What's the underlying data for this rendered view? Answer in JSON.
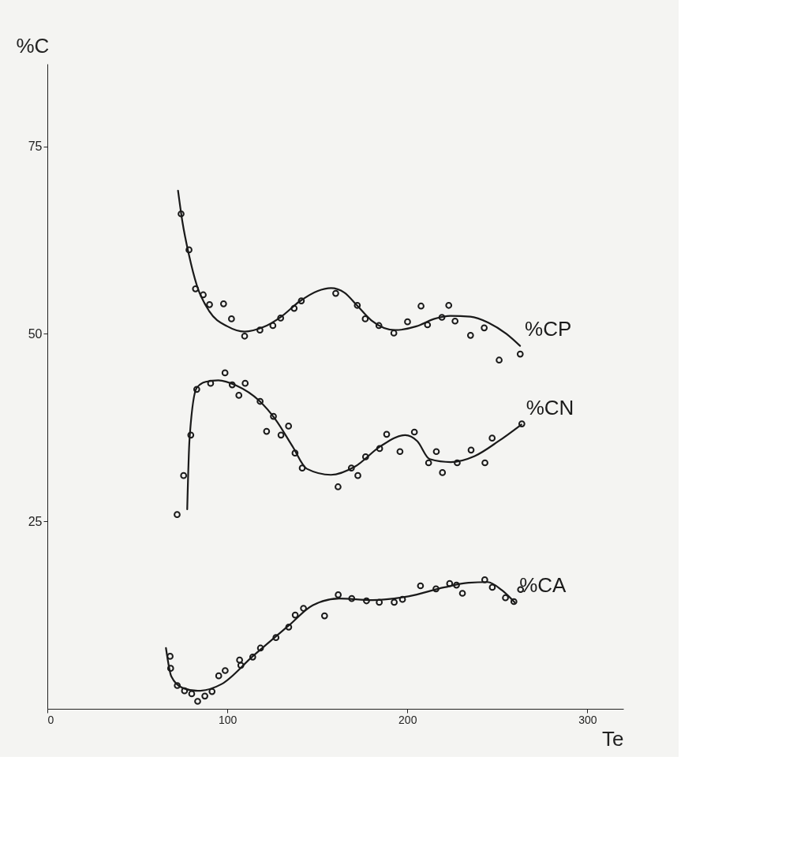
{
  "chart_data": {
    "type": "scatter",
    "xlabel": "Te",
    "ylabel": "%C",
    "xlim": [
      0,
      320
    ],
    "ylim": [
      0,
      86
    ],
    "xticks": [
      0,
      100,
      200,
      300
    ],
    "yticks": [
      25,
      50,
      75
    ],
    "grid": false,
    "series": [
      {
        "marker": "circle",
        "color": "#1a1a1a",
        "x": [
          74.3,
          78.7,
          82.3,
          86.6,
          90.1,
          97.9,
          102.3,
          109.6,
          118.1,
          125.3,
          129.6,
          137.1,
          141.1,
          160.2,
          172.2,
          176.6,
          184.2,
          192.5,
          200.1,
          207.6,
          211.2,
          219.2,
          223.0,
          226.5,
          235.1,
          242.7,
          251.0,
          262.7
        ],
        "values": [
          66.0,
          61.2,
          56.0,
          55.2,
          53.9,
          54.0,
          52.0,
          49.7,
          50.5,
          51.1,
          52.1,
          53.4,
          54.4,
          55.4,
          53.8,
          52.0,
          51.1,
          50.1,
          51.6,
          53.7,
          51.2,
          52.2,
          53.8,
          51.7,
          49.8,
          50.8,
          46.5,
          47.3
        ]
      },
      {
        "type": "line",
        "line_style": "solid",
        "name": "%CP",
        "color": "#1a1a1a",
        "x": [
          72.6,
          75.0,
          78.7,
          83.0,
          90.0,
          100.0,
          109.6,
          120.0,
          130.0,
          140.0,
          150.0,
          157.6,
          165.0,
          172.0,
          180.0,
          193.4,
          205.0,
          215.0,
          224.0,
          235.0,
          245.0,
          255.0,
          262.6
        ],
        "values": [
          69.1,
          65.0,
          60.5,
          56.5,
          53.0,
          51.0,
          50.3,
          50.9,
          52.3,
          54.3,
          55.7,
          56.1,
          55.5,
          53.8,
          51.8,
          50.5,
          51.0,
          52.0,
          52.4,
          52.3,
          51.5,
          50.0,
          48.4
        ]
      },
      {
        "marker": "circle",
        "color": "#1a1a1a",
        "x": [
          72.1,
          75.7,
          79.7,
          83.0,
          90.7,
          98.7,
          102.7,
          106.4,
          109.9,
          118.2,
          125.6,
          121.8,
          129.8,
          134.0,
          137.6,
          141.6,
          161.5,
          168.9,
          172.5,
          176.8,
          184.6,
          188.5,
          195.9,
          203.9,
          211.8,
          216.1,
          219.5,
          227.7,
          235.4,
          243.1,
          247.1,
          263.6
        ],
        "values": [
          25.9,
          31.1,
          36.5,
          42.6,
          43.4,
          44.8,
          43.2,
          41.8,
          43.4,
          41.0,
          39.0,
          37.0,
          36.5,
          37.7,
          34.1,
          32.1,
          29.6,
          32.1,
          31.1,
          33.6,
          34.7,
          36.6,
          34.3,
          36.9,
          32.8,
          34.3,
          31.5,
          32.8,
          34.5,
          32.8,
          36.1,
          38.0
        ]
      },
      {
        "type": "line",
        "line_style": "solid",
        "name": "%CN",
        "color": "#1a1a1a",
        "x": [
          77.7,
          79.0,
          83.0,
          88.0,
          95.0,
          105.0,
          117.6,
          127.0,
          136.2,
          144.2,
          157.5,
          170.9,
          185.0,
          198.8,
          205.5,
          212.4,
          224.1,
          237.4,
          250.7,
          263.3
        ],
        "values": [
          26.6,
          36.0,
          42.8,
          43.6,
          43.8,
          43.1,
          41.1,
          38.5,
          35.0,
          32.0,
          31.2,
          32.3,
          35.0,
          36.5,
          35.7,
          33.3,
          32.9,
          33.7,
          35.7,
          37.9
        ]
      },
      {
        "marker": "circle",
        "color": "#1a1a1a",
        "x": [
          68.2,
          68.5,
          72.2,
          76.2,
          80.2,
          83.5,
          87.5,
          91.5,
          95.2,
          98.8,
          106.8,
          107.5,
          114.1,
          118.4,
          127.0,
          134.1,
          137.7,
          142.3,
          154.0,
          161.6,
          169.1,
          177.3,
          184.4,
          192.7,
          197.3,
          207.3,
          215.9,
          223.5,
          227.3,
          230.6,
          243.0,
          247.2,
          254.5,
          259.2,
          262.9
        ],
        "values": [
          7.0,
          5.4,
          3.1,
          2.4,
          2.0,
          1.0,
          1.7,
          2.3,
          4.4,
          5.1,
          6.5,
          5.8,
          6.9,
          8.1,
          9.5,
          10.9,
          12.5,
          13.4,
          12.4,
          15.2,
          14.7,
          14.4,
          14.2,
          14.2,
          14.6,
          16.4,
          16.0,
          16.7,
          16.5,
          15.4,
          17.2,
          16.2,
          14.8,
          14.3,
          15.9
        ]
      },
      {
        "type": "line",
        "line_style": "solid",
        "name": "%CA",
        "color": "#1a1a1a",
        "x": [
          65.9,
          68.9,
          75.0,
          83.5,
          96.8,
          114.1,
          134.1,
          147.4,
          162.1,
          180.7,
          200.6,
          220.6,
          233.9,
          244.6,
          252.6,
          259.6
        ],
        "values": [
          8.1,
          4.3,
          2.8,
          2.4,
          3.3,
          7.0,
          11.1,
          13.8,
          14.7,
          14.5,
          15.0,
          16.2,
          16.8,
          16.9,
          15.8,
          14.2
        ]
      }
    ]
  }
}
